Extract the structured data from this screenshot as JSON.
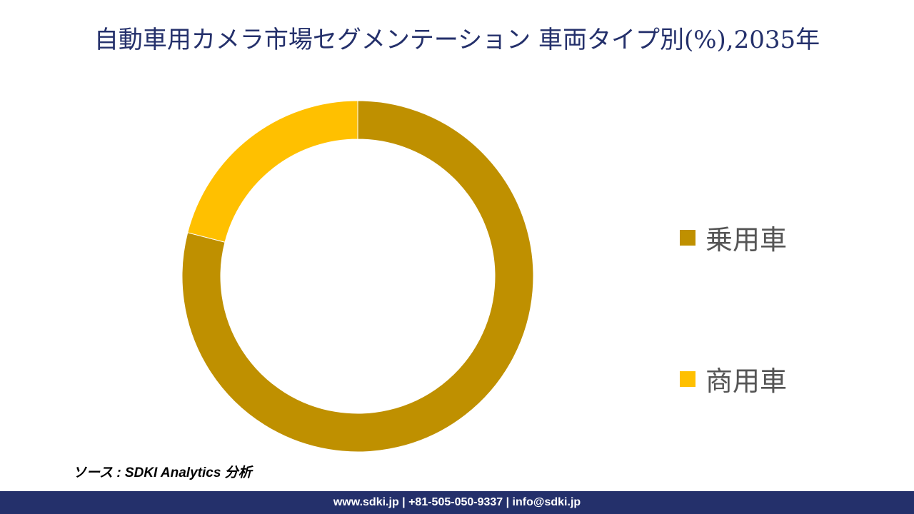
{
  "chart_data": {
    "type": "pie",
    "subtype": "donut",
    "title": "自動車用カメラ市場セグメンテーション 車両タイプ別(%),2035年",
    "categories": [
      "乗用車",
      "商用車"
    ],
    "values": [
      79,
      21
    ],
    "colors": [
      "#bf9000",
      "#ffc000"
    ],
    "legend_position": "right"
  },
  "source": "ソース : SDKI Analytics 分析",
  "footer": "www.sdki.jp | +81-505-050-9337 | info@sdki.jp"
}
